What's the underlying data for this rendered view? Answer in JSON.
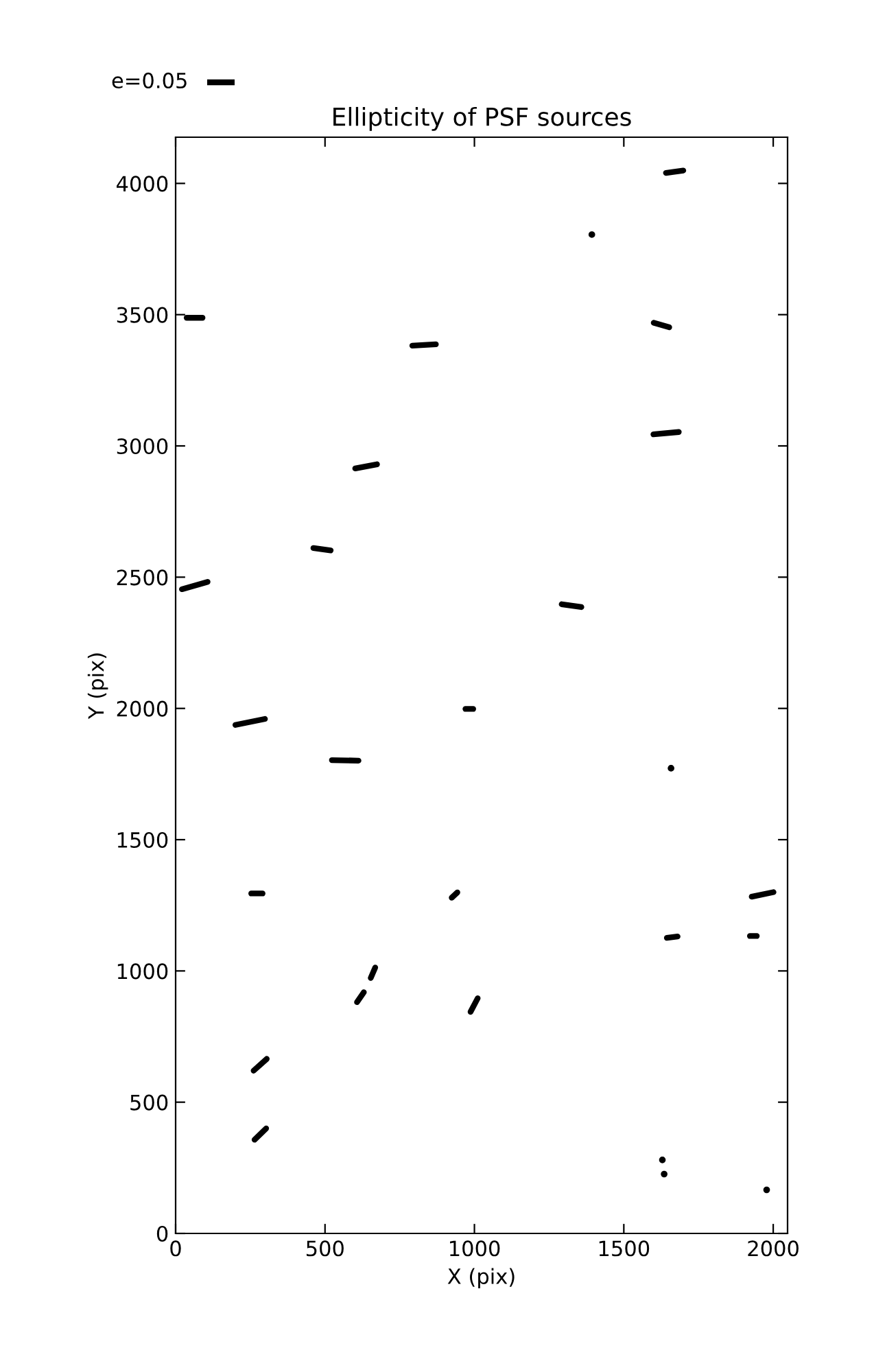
{
  "chart_data": {
    "type": "line",
    "title": "Ellipticity of PSF sources",
    "xlabel": "X (pix)",
    "ylabel": "Y (pix)",
    "annotations": [
      "e=0.05"
    ],
    "xlim": [
      0,
      2048
    ],
    "ylim": [
      0,
      4176
    ],
    "xticks": [
      0,
      500,
      1000,
      1500,
      2000
    ],
    "yticks": [
      0,
      500,
      1000,
      1500,
      2000,
      2500,
      3000,
      3500,
      4000
    ],
    "grid": false,
    "marker": "none",
    "line_style": "solid",
    "series": [
      {
        "color": "#000000",
        "x": [
          1641,
          1699
        ],
        "values": [
          4040,
          4049
        ]
      },
      {
        "type": "scatter",
        "marker": "circle",
        "color": "#000000",
        "x": [
          1393,
          1658,
          1978,
          1629,
          1635
        ],
        "values": [
          3805,
          1772,
          166,
          280,
          226
        ]
      },
      {
        "color": "#000000",
        "x": [
          1600,
          1652
        ],
        "values": [
          3469,
          3452
        ]
      },
      {
        "color": "#000000",
        "x": [
          1599,
          1684
        ],
        "values": [
          3044,
          3053
        ]
      },
      {
        "color": "#000000",
        "x": [
          37,
          90
        ],
        "values": [
          3488,
          3488
        ]
      },
      {
        "color": "#000000",
        "x": [
          792,
          871
        ],
        "values": [
          3382,
          3387
        ]
      },
      {
        "color": "#000000",
        "x": [
          601,
          674
        ],
        "values": [
          2914,
          2930
        ]
      },
      {
        "color": "#000000",
        "x": [
          461,
          519
        ],
        "values": [
          2611,
          2602
        ]
      },
      {
        "color": "#000000",
        "x": [
          21,
          107
        ],
        "values": [
          2454,
          2482
        ]
      },
      {
        "color": "#000000",
        "x": [
          200,
          299
        ],
        "values": [
          1937,
          1960
        ]
      },
      {
        "color": "#000000",
        "x": [
          970,
          996
        ],
        "values": [
          1998,
          1998
        ]
      },
      {
        "color": "#000000",
        "x": [
          523,
          612
        ],
        "values": [
          1803,
          1801
        ]
      },
      {
        "color": "#000000",
        "x": [
          1292,
          1358
        ],
        "values": [
          2397,
          2386
        ]
      },
      {
        "color": "#000000",
        "x": [
          253,
          291
        ],
        "values": [
          1295,
          1295
        ]
      },
      {
        "color": "#000000",
        "x": [
          924,
          943
        ],
        "values": [
          1279,
          1299
        ]
      },
      {
        "color": "#000000",
        "x": [
          653,
          668
        ],
        "values": [
          973,
          1013
        ]
      },
      {
        "color": "#000000",
        "x": [
          607,
          630
        ],
        "values": [
          881,
          919
        ]
      },
      {
        "color": "#000000",
        "x": [
          987,
          1011
        ],
        "values": [
          844,
          896
        ]
      },
      {
        "color": "#000000",
        "x": [
          261,
          305
        ],
        "values": [
          620,
          665
        ]
      },
      {
        "color": "#000000",
        "x": [
          264,
          303
        ],
        "values": [
          357,
          400
        ]
      },
      {
        "color": "#000000",
        "x": [
          1928,
          2001
        ],
        "values": [
          1283,
          1300
        ]
      },
      {
        "color": "#000000",
        "x": [
          1644,
          1680
        ],
        "values": [
          1126,
          1131
        ]
      },
      {
        "color": "#000000",
        "x": [
          1922,
          1945
        ],
        "values": [
          1133,
          1133
        ]
      }
    ]
  }
}
